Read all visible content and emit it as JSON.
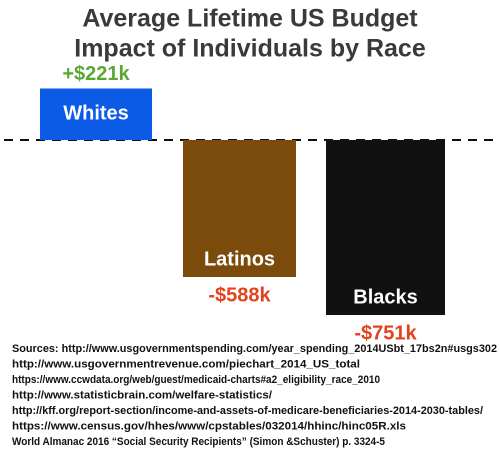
{
  "chart_data": {
    "type": "bar",
    "title": [
      "Average Lifetime US Budget",
      "Impact of Individuals by Race"
    ],
    "categories": [
      "Whites",
      "Latinos",
      "Blacks"
    ],
    "values": [
      221,
      -588,
      -751
    ],
    "value_labels": [
      "+$221k",
      "-$588k",
      "-$751k"
    ],
    "colors": [
      "#0b5be6",
      "#7b4b0c",
      "#111111"
    ],
    "value_label_colors": [
      "#5aa832",
      "#e2431d",
      "#e2431d"
    ],
    "sources": [
      "Sources: http://www.usgovernmentspending.com/year_spending_2014USbt_17bs2n#usgs302",
      "http://www.usgovernmentrevenue.com/piechart_2014_US_total",
      "https://www.ccwdata.org/web/guest/medicaid-charts#a2_eligibility_race_2010",
      "http://www.statisticbrain.com/welfare-statistics/",
      "http://kff.org/report-section/income-and-assets-of-medicare-beneficiaries-2014-2030-tables/",
      "https://www.census.gov/hhes/www/cpstables/032014/hhinc/hinc05R.xls",
      "World Almanac 2016 “Social Security Recipients” (Simon &Schuster) p. 3324-5"
    ]
  }
}
